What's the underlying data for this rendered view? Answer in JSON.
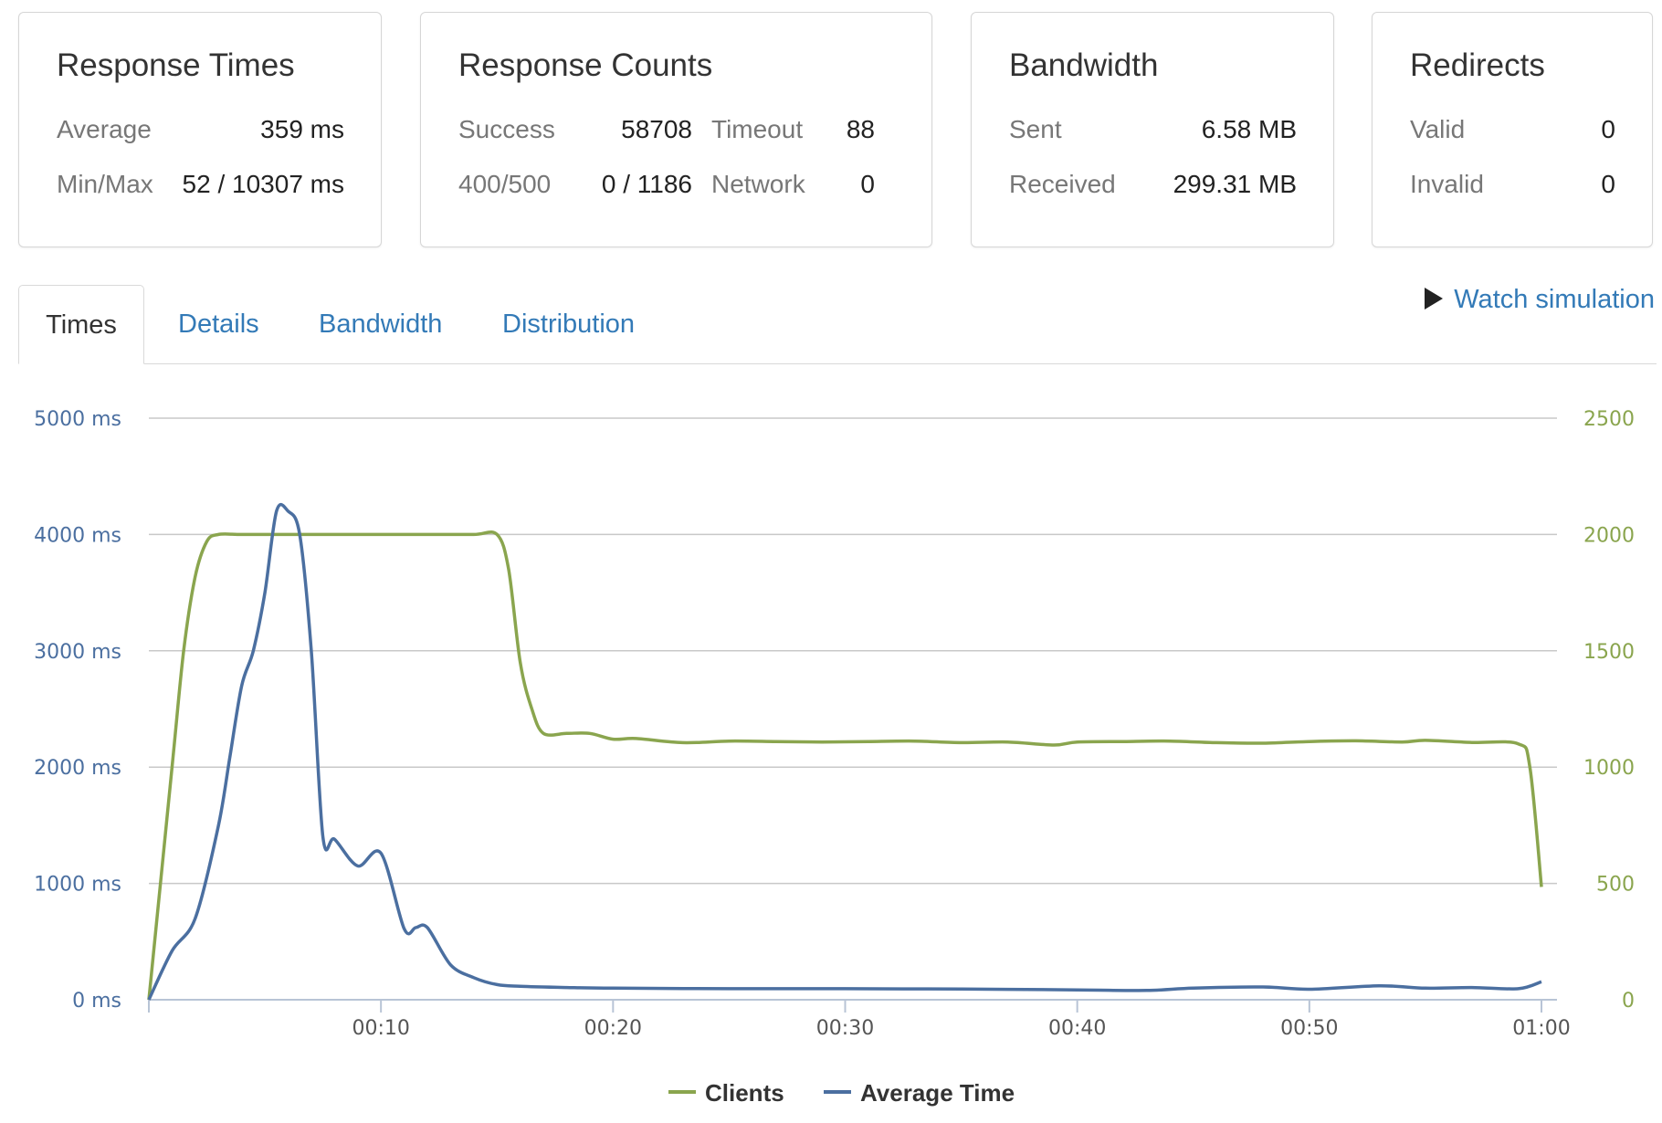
{
  "cards": {
    "response_times": {
      "title": "Response Times",
      "average_label": "Average",
      "average_value": "359 ms",
      "minmax_label": "Min/Max",
      "minmax_value": "52 / 10307 ms"
    },
    "response_counts": {
      "title": "Response Counts",
      "success_label": "Success",
      "success_value": "58708",
      "timeout_label": "Timeout",
      "timeout_value": "88",
      "errors_label": "400/500",
      "errors_value": "0 / 1186",
      "network_label": "Network",
      "network_value": "0"
    },
    "bandwidth": {
      "title": "Bandwidth",
      "sent_label": "Sent",
      "sent_value": "6.58 MB",
      "received_label": "Received",
      "received_value": "299.31 MB"
    },
    "redirects": {
      "title": "Redirects",
      "valid_label": "Valid",
      "valid_value": "0",
      "invalid_label": "Invalid",
      "invalid_value": "0"
    }
  },
  "tabs": [
    {
      "label": "Times",
      "active": true
    },
    {
      "label": "Details",
      "active": false
    },
    {
      "label": "Bandwidth",
      "active": false
    },
    {
      "label": "Distribution",
      "active": false
    }
  ],
  "watch_simulation": {
    "label": "Watch simulation",
    "icon": "play-icon"
  },
  "colors": {
    "clients": "#8aa54e",
    "average_time": "#4b6fa0",
    "grid": "#c8c8c8",
    "link": "#337ab7"
  },
  "chart_data": {
    "type": "line",
    "x_unit": "seconds",
    "x_ticks": [
      "00:10",
      "00:20",
      "00:30",
      "00:40",
      "00:50",
      "01:00"
    ],
    "x_tick_values": [
      10,
      20,
      30,
      40,
      50,
      60
    ],
    "xlim": [
      0,
      60
    ],
    "left_axis": {
      "ticks": [
        "0 ms",
        "1000 ms",
        "2000 ms",
        "3000 ms",
        "4000 ms",
        "5000 ms"
      ],
      "range": [
        0,
        5000
      ],
      "unit": "ms"
    },
    "right_axis": {
      "ticks": [
        "0",
        "500",
        "1000",
        "1500",
        "2000",
        "2500"
      ],
      "range": [
        0,
        2500
      ]
    },
    "grid": true,
    "legend_position": "bottom-center",
    "series": [
      {
        "name": "Clients",
        "axis": "right",
        "x": [
          0,
          1,
          1.5,
          2,
          2.5,
          3,
          4,
          6,
          8,
          10,
          12,
          14,
          15,
          15.5,
          16,
          16.5,
          17,
          18,
          19,
          20,
          21,
          23,
          25,
          27,
          29,
          31,
          33,
          35,
          37,
          39,
          40,
          42,
          44,
          46,
          48,
          50,
          52,
          54,
          55,
          57,
          59,
          59.5,
          60
        ],
        "values": [
          0,
          1000,
          1500,
          1820,
          1970,
          2000,
          2000,
          2000,
          2000,
          2000,
          2000,
          2000,
          2000,
          1850,
          1450,
          1250,
          1145,
          1145,
          1145,
          1120,
          1123,
          1105,
          1112,
          1110,
          1108,
          1110,
          1112,
          1105,
          1108,
          1095,
          1108,
          1110,
          1112,
          1105,
          1103,
          1110,
          1113,
          1108,
          1115,
          1106,
          1100,
          1000,
          485
        ]
      },
      {
        "name": "Average Time",
        "axis": "left",
        "x": [
          0,
          1,
          2,
          3,
          3.5,
          4,
          4.5,
          5,
          5.5,
          6,
          6.5,
          7,
          7.5,
          8,
          9,
          10,
          11,
          11.5,
          12,
          13,
          14,
          15,
          16,
          18,
          20,
          25,
          30,
          35,
          40,
          43,
          45,
          48,
          50,
          53,
          55,
          57,
          59,
          60
        ],
        "values": [
          0,
          420,
          700,
          1500,
          2100,
          2700,
          3000,
          3500,
          4200,
          4200,
          4000,
          3000,
          1400,
          1380,
          1150,
          1260,
          610,
          620,
          620,
          300,
          190,
          130,
          115,
          105,
          100,
          95,
          95,
          92,
          85,
          80,
          100,
          110,
          90,
          120,
          100,
          105,
          95,
          155
        ]
      }
    ]
  }
}
